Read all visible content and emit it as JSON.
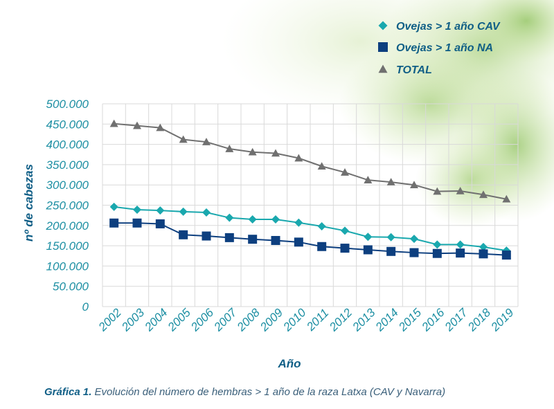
{
  "chart_data": {
    "type": "line",
    "categories": [
      "2002",
      "2003",
      "2004",
      "2005",
      "2006",
      "2007",
      "2008",
      "2009",
      "2010",
      "2011",
      "2012",
      "2013",
      "2014",
      "2015",
      "2016",
      "2017",
      "2018",
      "2019"
    ],
    "series": [
      {
        "name": "Ovejas > 1 año CAV",
        "color": "#1aa8ae",
        "marker": "diamond",
        "values": [
          246000,
          239000,
          237000,
          234000,
          232000,
          219000,
          215000,
          215000,
          207000,
          198000,
          187000,
          172000,
          171000,
          167000,
          153000,
          153000,
          147000,
          138000
        ]
      },
      {
        "name": "Ovejas > 1 año NA",
        "color": "#0d3f7f",
        "marker": "square",
        "values": [
          206000,
          206000,
          204000,
          177000,
          174000,
          170000,
          166000,
          163000,
          159000,
          148000,
          144000,
          140000,
          136000,
          133000,
          131000,
          132000,
          130000,
          127000
        ]
      },
      {
        "name": "TOTAL",
        "color": "#707070",
        "marker": "triangle",
        "values": [
          451000,
          446000,
          441000,
          412000,
          406000,
          389000,
          381000,
          378000,
          366000,
          346000,
          331000,
          312000,
          307000,
          300000,
          284000,
          285000,
          276000,
          265000
        ]
      }
    ],
    "ylim": [
      0,
      500000
    ],
    "yticks": [
      0,
      50000,
      100000,
      150000,
      200000,
      250000,
      300000,
      350000,
      400000,
      450000,
      500000
    ],
    "ytick_labels": [
      "0",
      "50.000",
      "100.000",
      "150.000",
      "200.000",
      "250.000",
      "300.000",
      "350.000",
      "400.000",
      "450.000",
      "500.000"
    ],
    "xlabel": "Año",
    "ylabel": "nº de cabezas",
    "grid": true,
    "legend_position": "top-right"
  },
  "caption": {
    "label": "Gráfica 1.",
    "text": "Evolución del número de hembras > 1 año de la raza Latxa (CAV y Navarra)"
  }
}
